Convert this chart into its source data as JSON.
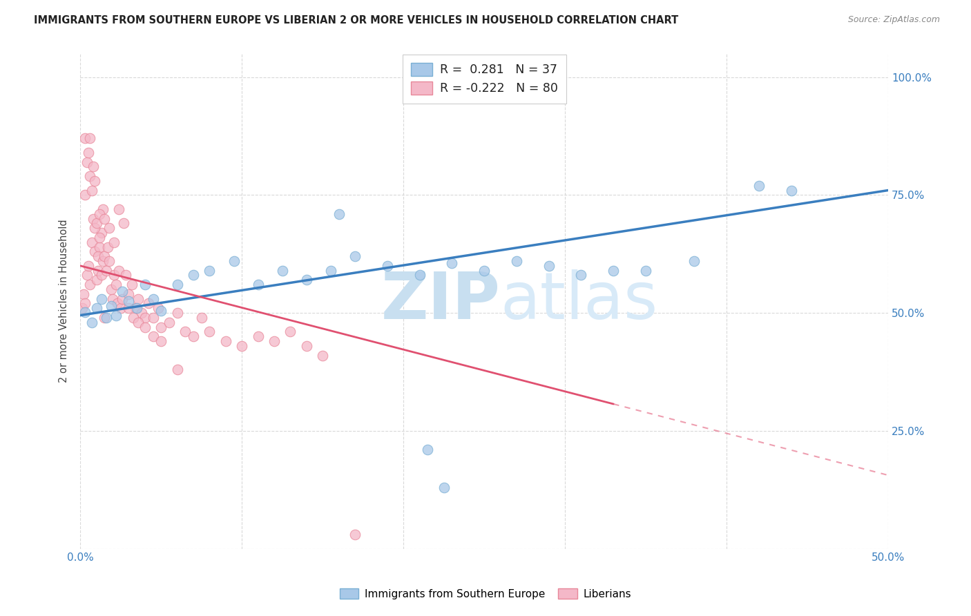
{
  "title": "IMMIGRANTS FROM SOUTHERN EUROPE VS LIBERIAN 2 OR MORE VEHICLES IN HOUSEHOLD CORRELATION CHART",
  "source": "Source: ZipAtlas.com",
  "ylabel": "2 or more Vehicles in Household",
  "xlim": [
    0.0,
    0.5
  ],
  "ylim": [
    0.0,
    1.05
  ],
  "legend1_r": "0.281",
  "legend1_n": "37",
  "legend2_r": "-0.222",
  "legend2_n": "80",
  "legend_label1": "Immigrants from Southern Europe",
  "legend_label2": "Liberians",
  "watermark_zip": "ZIP",
  "watermark_atlas": "atlas",
  "blue_color": "#a8c8e8",
  "blue_edge": "#7aafd4",
  "pink_color": "#f4b8c8",
  "pink_edge": "#e8889a",
  "line_blue": "#3a7ebf",
  "line_pink": "#e05070",
  "blue_x": [
    0.003,
    0.007,
    0.01,
    0.013,
    0.016,
    0.019,
    0.022,
    0.026,
    0.03,
    0.035,
    0.04,
    0.045,
    0.05,
    0.06,
    0.07,
    0.08,
    0.095,
    0.11,
    0.125,
    0.14,
    0.155,
    0.17,
    0.19,
    0.21,
    0.23,
    0.25,
    0.27,
    0.29,
    0.31,
    0.33,
    0.35,
    0.38,
    0.42,
    0.44,
    0.215,
    0.225,
    0.16
  ],
  "blue_y": [
    0.502,
    0.48,
    0.51,
    0.53,
    0.49,
    0.515,
    0.495,
    0.545,
    0.525,
    0.51,
    0.56,
    0.53,
    0.505,
    0.56,
    0.58,
    0.59,
    0.61,
    0.56,
    0.59,
    0.57,
    0.59,
    0.62,
    0.6,
    0.58,
    0.605,
    0.59,
    0.61,
    0.6,
    0.58,
    0.59,
    0.59,
    0.61,
    0.77,
    0.76,
    0.21,
    0.13,
    0.71
  ],
  "pink_x": [
    0.001,
    0.002,
    0.003,
    0.004,
    0.005,
    0.006,
    0.007,
    0.008,
    0.009,
    0.01,
    0.011,
    0.012,
    0.013,
    0.014,
    0.015,
    0.003,
    0.004,
    0.005,
    0.006,
    0.007,
    0.008,
    0.009,
    0.01,
    0.011,
    0.012,
    0.013,
    0.014,
    0.015,
    0.016,
    0.017,
    0.018,
    0.019,
    0.02,
    0.021,
    0.022,
    0.023,
    0.024,
    0.025,
    0.026,
    0.028,
    0.03,
    0.032,
    0.034,
    0.036,
    0.038,
    0.04,
    0.042,
    0.045,
    0.048,
    0.05,
    0.055,
    0.06,
    0.065,
    0.07,
    0.075,
    0.08,
    0.09,
    0.1,
    0.11,
    0.12,
    0.13,
    0.14,
    0.15,
    0.003,
    0.006,
    0.009,
    0.012,
    0.015,
    0.018,
    0.021,
    0.024,
    0.027,
    0.03,
    0.033,
    0.036,
    0.04,
    0.045,
    0.05,
    0.06,
    0.17
  ],
  "pink_y": [
    0.51,
    0.54,
    0.52,
    0.58,
    0.6,
    0.56,
    0.65,
    0.7,
    0.63,
    0.57,
    0.59,
    0.64,
    0.67,
    0.72,
    0.49,
    0.75,
    0.82,
    0.84,
    0.79,
    0.76,
    0.81,
    0.68,
    0.69,
    0.62,
    0.66,
    0.58,
    0.61,
    0.62,
    0.59,
    0.64,
    0.61,
    0.55,
    0.53,
    0.58,
    0.56,
    0.52,
    0.59,
    0.51,
    0.53,
    0.58,
    0.54,
    0.56,
    0.51,
    0.53,
    0.5,
    0.49,
    0.52,
    0.49,
    0.51,
    0.47,
    0.48,
    0.5,
    0.46,
    0.45,
    0.49,
    0.46,
    0.44,
    0.43,
    0.45,
    0.44,
    0.46,
    0.43,
    0.41,
    0.87,
    0.87,
    0.78,
    0.71,
    0.7,
    0.68,
    0.65,
    0.72,
    0.69,
    0.51,
    0.49,
    0.48,
    0.47,
    0.45,
    0.44,
    0.38,
    0.03
  ]
}
